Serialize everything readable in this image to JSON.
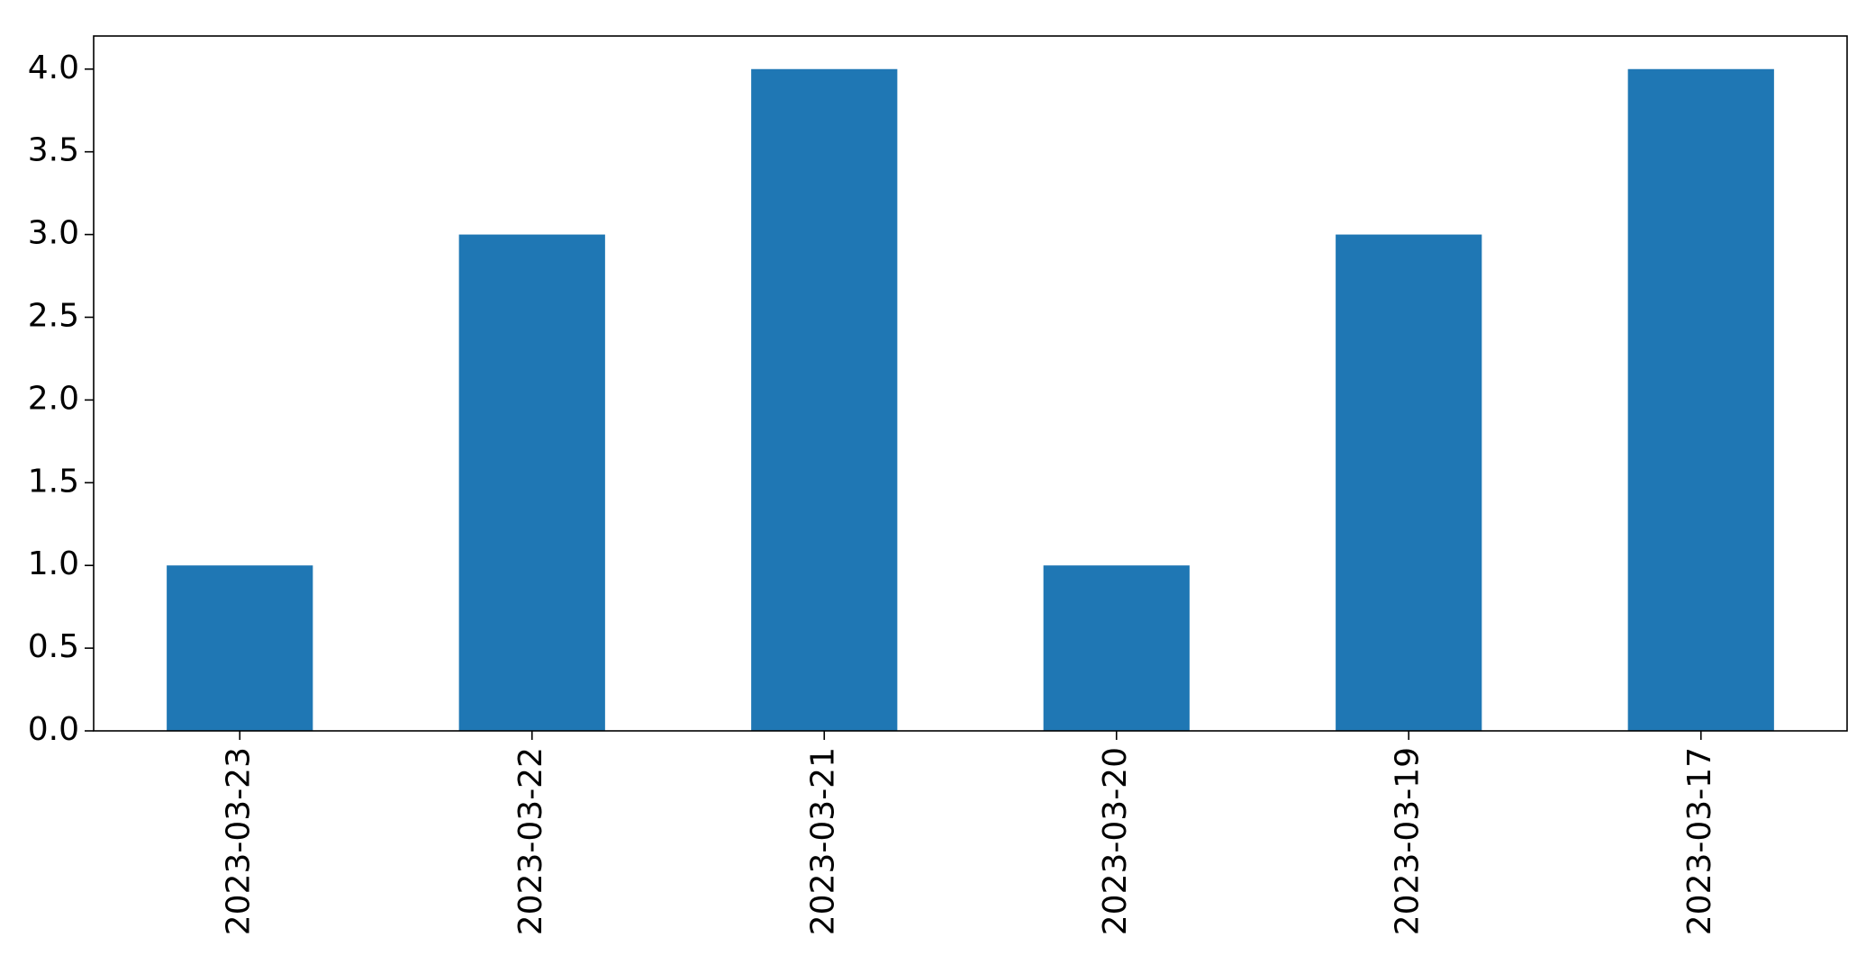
{
  "chart_data": {
    "type": "bar",
    "categories": [
      "2023-03-23",
      "2023-03-22",
      "2023-03-21",
      "2023-03-20",
      "2023-03-19",
      "2023-03-17"
    ],
    "values": [
      1,
      3,
      4,
      1,
      3,
      4
    ],
    "title": "",
    "xlabel": "",
    "ylabel": "",
    "ylim": [
      0,
      4.2
    ],
    "yticks": [
      "0.0",
      "0.5",
      "1.0",
      "1.5",
      "2.0",
      "2.5",
      "3.0",
      "3.5",
      "4.0"
    ],
    "bar_color": "#1f77b4",
    "grid": false,
    "legend": "none"
  }
}
